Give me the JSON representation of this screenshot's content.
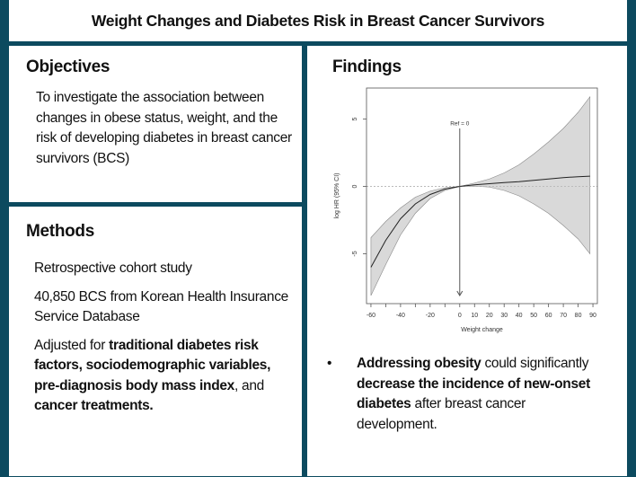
{
  "title": "Weight Changes and Diabetes Risk in Breast Cancer Survivors",
  "objectives": {
    "heading": "Objectives",
    "text": "To investigate the association between changes in obese status, weight, and the risk of developing diabetes in breast cancer survivors (BCS)"
  },
  "methods": {
    "heading": "Methods",
    "items": [
      "Retrospective cohort study",
      "40,850 BCS from Korean Health Insurance Service Database",
      {
        "p1": "Adjusted for ",
        "b1": "traditional diabetes risk factors, sociodemographic variables, pre-diagnosis body mass index",
        "p2": ", and ",
        "b2": "cancer treatments."
      }
    ]
  },
  "findings": {
    "heading": "Findings",
    "bullet": "•",
    "b1": "Addressing obesity",
    "p1": " could significantly ",
    "b2": "decrease the incidence of new-onset diabetes",
    "p2": " after breast cancer development."
  },
  "colors": {
    "frame": "#0c4a5f",
    "band": "#d9d9d9"
  },
  "chart_data": {
    "type": "line",
    "xlabel": "Weight change",
    "ylabel": "log HR (95% CI)",
    "annotation": "Ref = 0",
    "xticks": [
      -60,
      -50,
      -40,
      -30,
      -20,
      -10,
      0,
      10,
      20,
      30,
      40,
      50,
      60,
      70,
      80,
      90
    ],
    "xtick_labels": [
      "-60",
      "",
      "-40",
      "",
      "-20",
      "",
      "0",
      "10",
      "20",
      "30",
      "40",
      "50",
      "60",
      "70",
      "80",
      "90"
    ],
    "yticks": [
      -5,
      0,
      5
    ],
    "xlim": [
      -63,
      93
    ],
    "ylim": [
      -8.7,
      7.3
    ],
    "reference_line_y": 0,
    "x": [
      -60,
      -50,
      -40,
      -30,
      -20,
      -10,
      0,
      10,
      20,
      30,
      40,
      50,
      60,
      70,
      80,
      88
    ],
    "fit": [
      -6.0,
      -4.0,
      -2.4,
      -1.3,
      -0.6,
      -0.2,
      0,
      0.12,
      0.2,
      0.28,
      0.35,
      0.45,
      0.55,
      0.65,
      0.72,
      0.76
    ],
    "lower": [
      -8.1,
      -5.8,
      -3.6,
      -2.0,
      -0.9,
      -0.3,
      0,
      0.02,
      -0.05,
      -0.3,
      -0.7,
      -1.3,
      -2.0,
      -2.9,
      -3.9,
      -5.0
    ],
    "upper": [
      -3.8,
      -2.6,
      -1.6,
      -0.8,
      -0.35,
      -0.1,
      0,
      0.25,
      0.55,
      1.0,
      1.6,
      2.4,
      3.3,
      4.3,
      5.5,
      6.65
    ]
  }
}
